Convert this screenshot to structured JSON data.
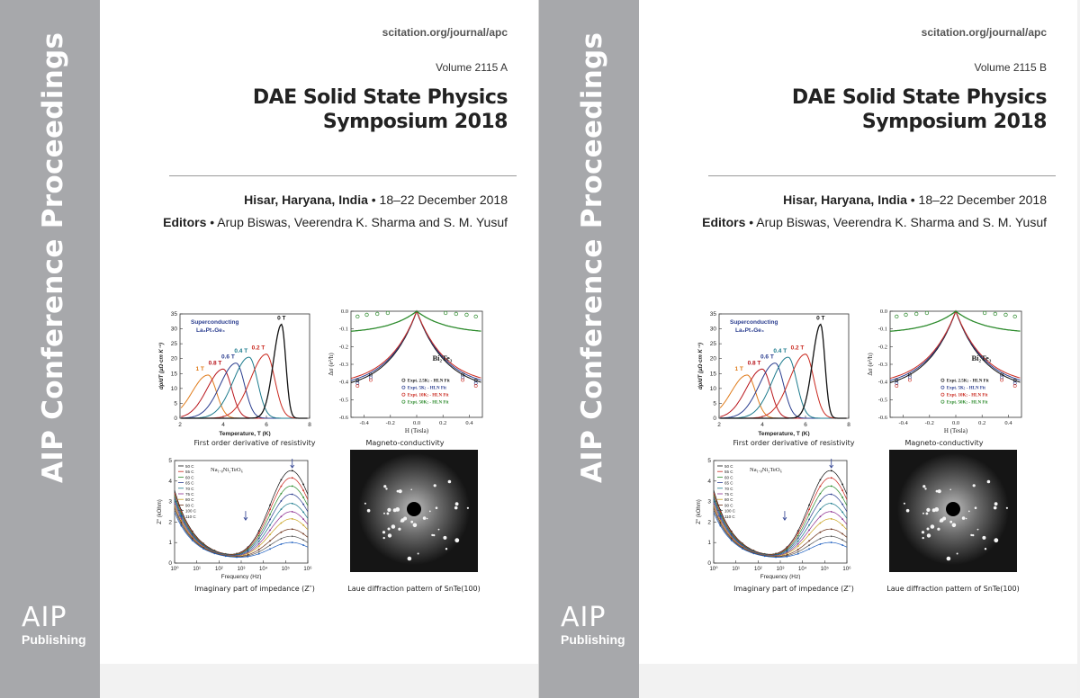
{
  "covers": [
    {
      "spine_title": "AIP Conference Proceedings",
      "logo_mark": "AIP",
      "logo_sub": "Publishing",
      "url": "scitation.org/journal/apc",
      "volume": "Volume 2115 A",
      "title_line1": "DAE Solid State Physics",
      "title_line2": "Symposium 2018",
      "venue_place": "Hisar, Haryana, India",
      "venue_dates": " • 18–22 December 2018",
      "editors_label": "Editors",
      "editors_names": " • Arup Biswas, Veerendra K. Sharma and S. M. Yusuf"
    },
    {
      "spine_title": "AIP Conference Proceedings",
      "logo_mark": "AIP",
      "logo_sub": "Publishing",
      "url": "scitation.org/journal/apc",
      "volume": "Volume 2115 B",
      "title_line1": "DAE Solid State Physics",
      "title_line2": "Symposium 2018",
      "venue_place": "Hisar, Haryana, India",
      "venue_dates": " • 18–22 December 2018",
      "editors_label": "Editors",
      "editors_names": " • Arup Biswas, Veerendra K. Sharma and S. M. Yusuf"
    }
  ],
  "figures": {
    "captions": {
      "resistivity": "First order derivative of resistivity",
      "magneto": "Magneto-conductivity",
      "impedance": "Imaginary part of impedance (Z″)",
      "laue": "Laue diffraction pattern of SnTe(100)"
    },
    "resistivity": {
      "label_line1": "Superconducting",
      "label_line2": "La₃Pt₄Ge₄",
      "xlabel": "Temperature, T (K)",
      "ylabel": "dρ/dT (μΩ·cm K⁻¹)",
      "xticks": [
        "2",
        "4",
        "6",
        "8"
      ],
      "yticks": [
        "0",
        "5",
        "10",
        "15",
        "20",
        "25",
        "30",
        "35"
      ],
      "curves": [
        {
          "label": "1 T",
          "color": "#e07b1a",
          "peak_T": 3.3,
          "peak": 14.5
        },
        {
          "label": "0.8 T",
          "color": "#b8141b",
          "peak_T": 4.0,
          "peak": 16.5
        },
        {
          "label": "0.6 T",
          "color": "#2a3d8f",
          "peak_T": 4.6,
          "peak": 18.5
        },
        {
          "label": "0.4 T",
          "color": "#1b7a8c",
          "peak_T": 5.2,
          "peak": 20.5
        },
        {
          "label": "0.2 T",
          "color": "#c9281e",
          "peak_T": 6.0,
          "peak": 21.5
        },
        {
          "label": "0 T",
          "color": "#111111",
          "peak_T": 6.7,
          "peak": 31.5
        }
      ]
    },
    "magneto": {
      "compound": "Bi₂Te₃",
      "xlabel": "H (Tesla)",
      "ylabel": "Δσ (e²/h)",
      "xticks": [
        "-0.4",
        "-0.2",
        "0.0",
        "0.2",
        "0.4"
      ],
      "yticks": [
        "0.0",
        "-0.1",
        "-0.2",
        "-0.3",
        "-0.4",
        "-0.5",
        "-0.6"
      ],
      "legend": [
        {
          "text": "Expt. 2.5K; - HLN Fit",
          "color": "#222222"
        },
        {
          "text": "Expt. 5K; - HLN Fit",
          "color": "#2a3d8f"
        },
        {
          "text": "Expt. 10K; - HLN Fit",
          "color": "#c9281e"
        },
        {
          "text": "Expt. 50K; - HLN Fit",
          "color": "#2b8a2b"
        }
      ]
    },
    "impedance": {
      "compound": "Na₁.₈Ni₂TeO₆",
      "xlabel": "Frequency (Hz)",
      "ylabel": "Z″ (kOhm)",
      "xticks": [
        "10⁰",
        "10¹",
        "10²",
        "10³",
        "10⁴",
        "10⁵",
        "10⁶"
      ],
      "yticks": [
        "0",
        "1",
        "2",
        "3",
        "4",
        "5"
      ],
      "legend": [
        "50 C",
        "55 C",
        "60 C",
        "65 C",
        "70 C",
        "75 C",
        "80 C",
        "90 C",
        "100 C",
        "110 C"
      ],
      "colors": [
        "#111111",
        "#c9281e",
        "#2b8a2b",
        "#2a3d8f",
        "#1b7a8c",
        "#8b2c8f",
        "#c9a21e",
        "#6b2f16",
        "#555555",
        "#1f5fbf"
      ],
      "peaks": [
        4.35,
        4.0,
        3.6,
        3.2,
        2.75,
        2.35,
        2.0,
        1.5,
        1.15,
        0.85
      ]
    }
  }
}
